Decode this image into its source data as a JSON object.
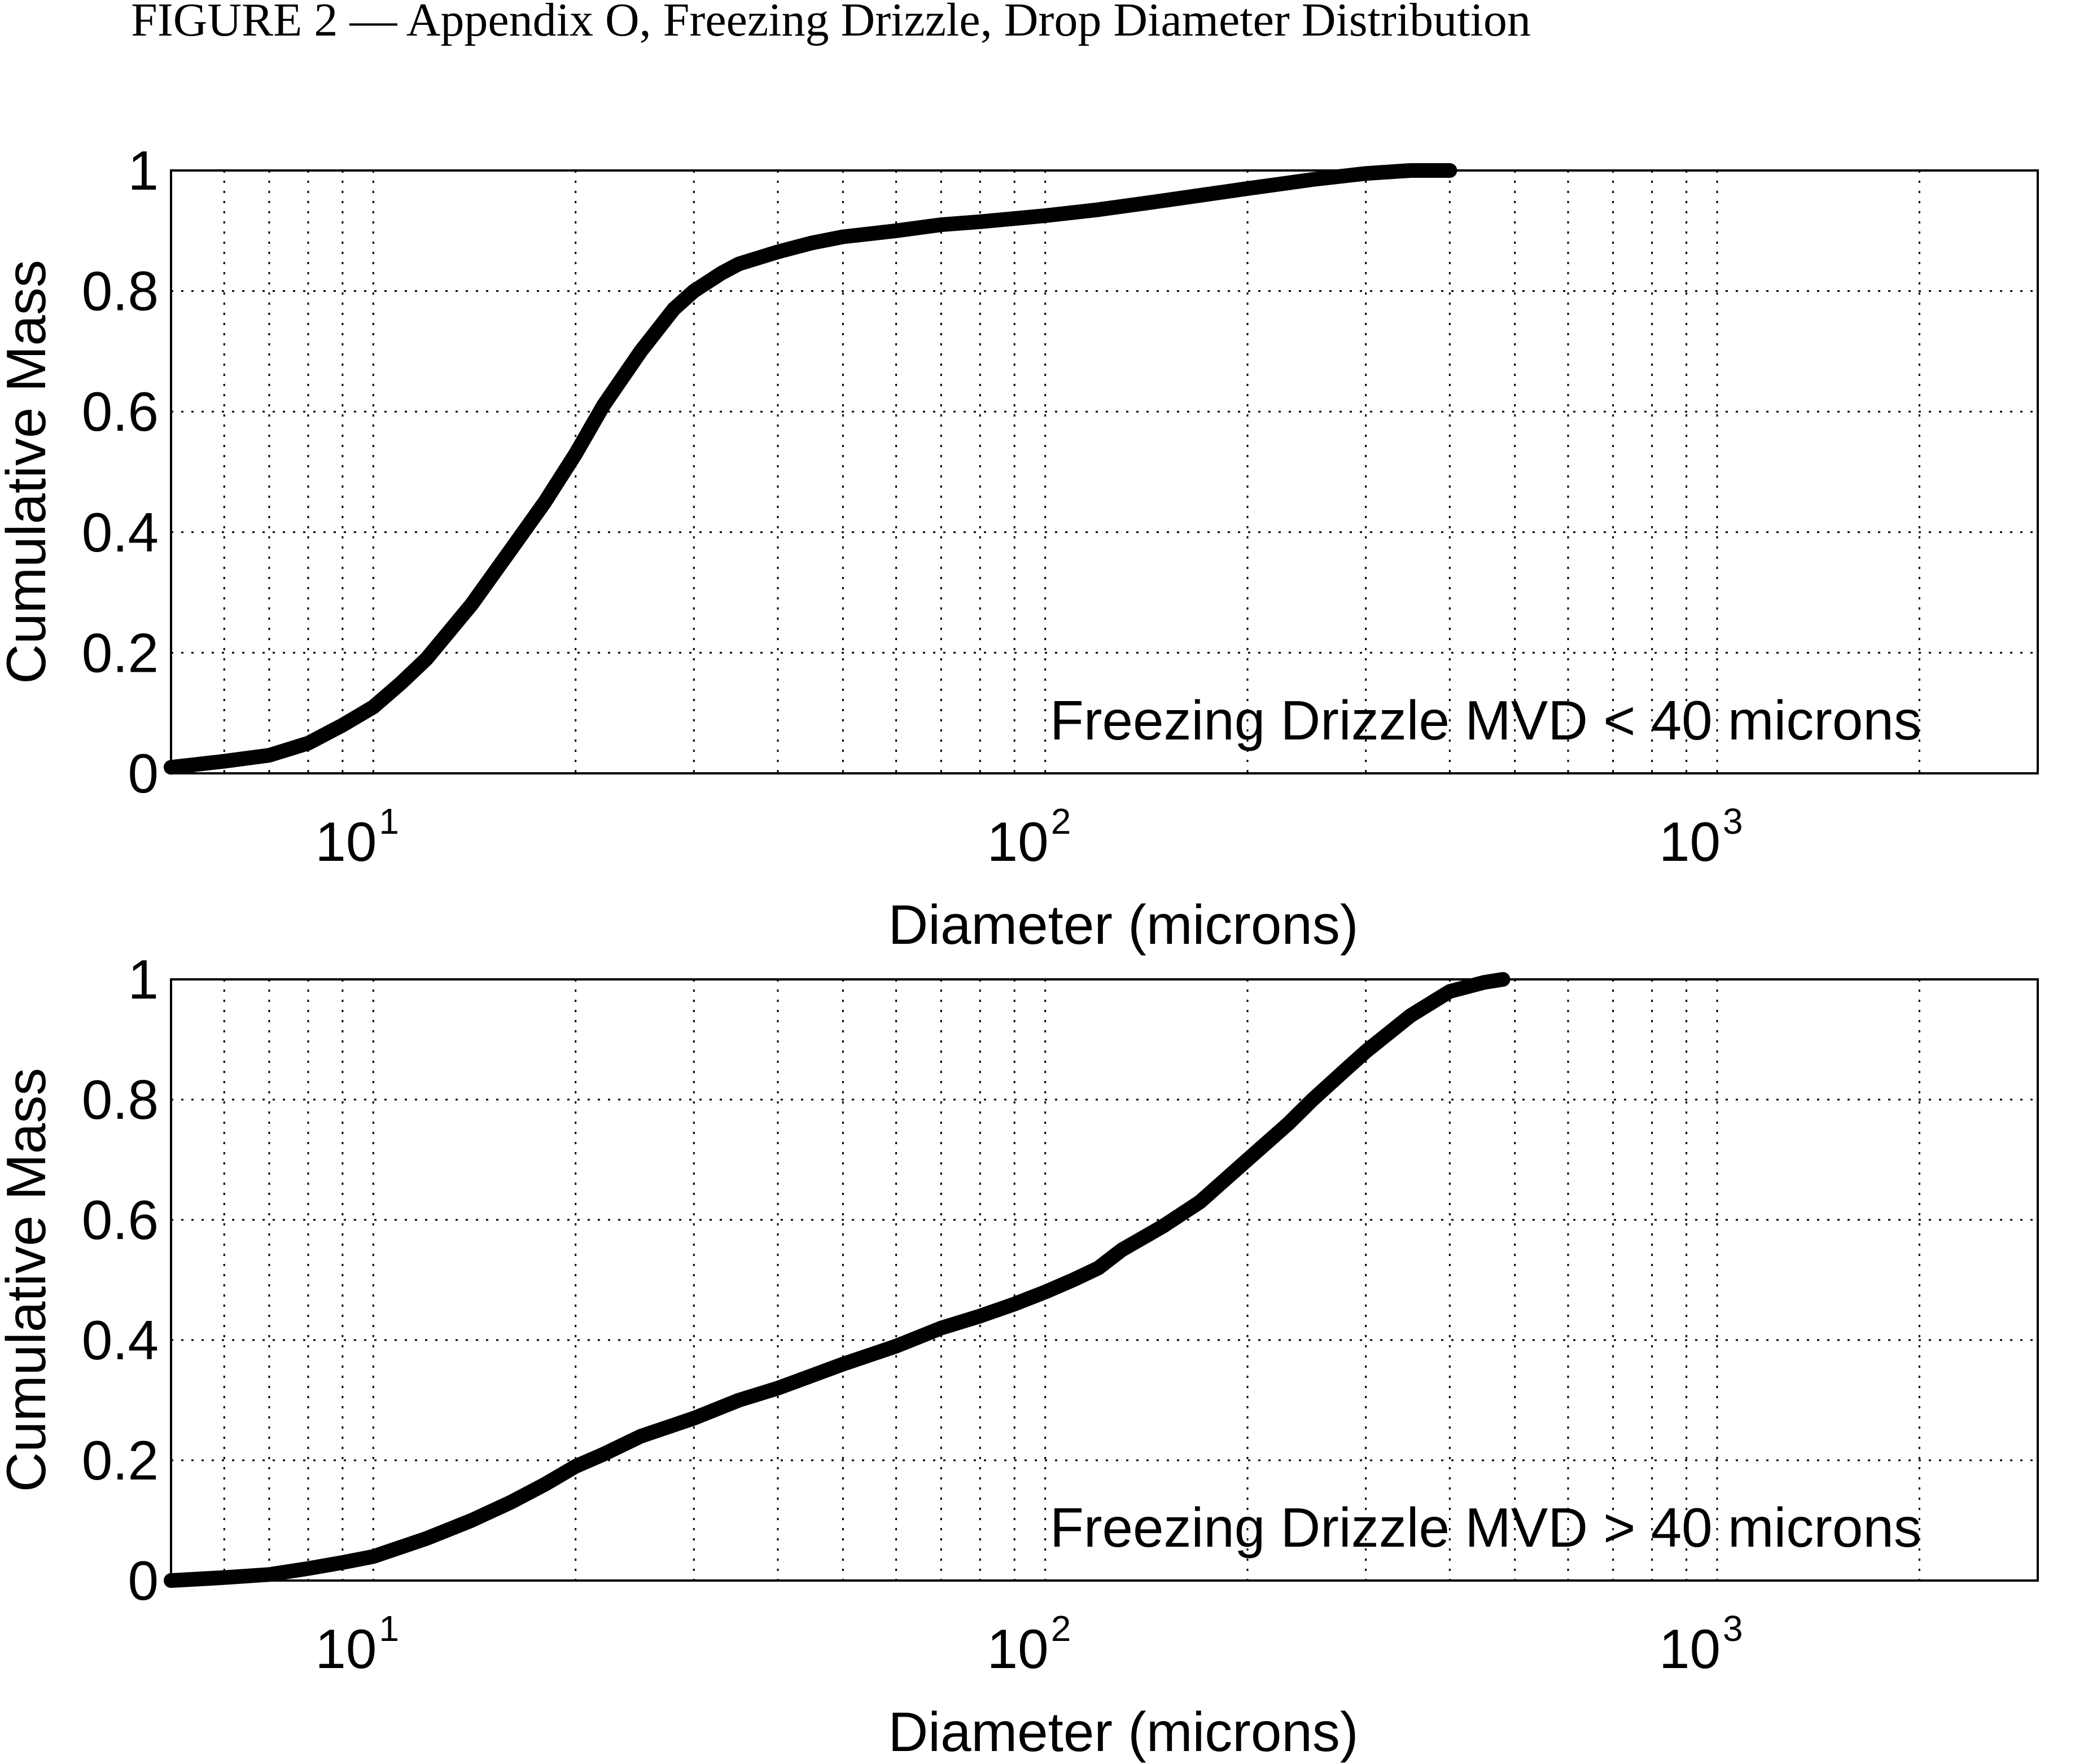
{
  "figure_title": "FIGURE 2 — Appendix O, Freezing Drizzle, Drop Diameter Distribution",
  "chart_data": [
    {
      "type": "line",
      "xlabel": "Diameter (microns)",
      "ylabel": "Cumulative Mass",
      "annotation": "Freezing Drizzle MVD < 40 microns",
      "xscale": "log",
      "xlim": [
        5,
        3000
      ],
      "ylim": [
        0,
        1
      ],
      "yticks": [
        "0",
        "0.2",
        "0.4",
        "0.6",
        "0.8",
        "1"
      ],
      "xticks": [
        {
          "base": "10",
          "exp": "1"
        },
        {
          "base": "10",
          "exp": "2"
        },
        {
          "base": "10",
          "exp": "3"
        }
      ],
      "grid": true,
      "series": [
        {
          "x": [
            5,
            6,
            7,
            8,
            9,
            10,
            11,
            12,
            14,
            16,
            18,
            20,
            22,
            25,
            28,
            30,
            33,
            35,
            40,
            45,
            50,
            60,
            70,
            80,
            100,
            120,
            150,
            200,
            250,
            300,
            350,
            400
          ],
          "y": [
            0.01,
            0.02,
            0.03,
            0.05,
            0.08,
            0.11,
            0.15,
            0.19,
            0.28,
            0.37,
            0.45,
            0.53,
            0.61,
            0.7,
            0.77,
            0.8,
            0.83,
            0.845,
            0.865,
            0.88,
            0.89,
            0.9,
            0.91,
            0.915,
            0.925,
            0.935,
            0.95,
            0.97,
            0.985,
            0.995,
            1.0,
            1.0
          ]
        }
      ]
    },
    {
      "type": "line",
      "xlabel": "Diameter (microns)",
      "ylabel": "Cumulative Mass",
      "annotation": "Freezing Drizzle MVD > 40 microns",
      "xscale": "log",
      "xlim": [
        5,
        3000
      ],
      "ylim": [
        0,
        1
      ],
      "yticks": [
        "0",
        "0.2",
        "0.4",
        "0.6",
        "0.8",
        "1"
      ],
      "xticks": [
        {
          "base": "10",
          "exp": "1"
        },
        {
          "base": "10",
          "exp": "2"
        },
        {
          "base": "10",
          "exp": "3"
        }
      ],
      "grid": true,
      "series": [
        {
          "x": [
            5,
            6,
            7,
            8,
            9,
            10,
            12,
            14,
            16,
            18,
            20,
            22,
            25,
            30,
            35,
            40,
            50,
            60,
            70,
            80,
            90,
            100,
            110,
            120,
            130,
            150,
            170,
            200,
            230,
            250,
            280,
            300,
            350,
            400,
            450,
            480
          ],
          "y": [
            0.0,
            0.005,
            0.01,
            0.02,
            0.03,
            0.04,
            0.07,
            0.1,
            0.13,
            0.16,
            0.19,
            0.21,
            0.24,
            0.27,
            0.3,
            0.32,
            0.36,
            0.39,
            0.42,
            0.44,
            0.46,
            0.48,
            0.5,
            0.52,
            0.55,
            0.59,
            0.63,
            0.7,
            0.76,
            0.8,
            0.85,
            0.88,
            0.94,
            0.98,
            0.995,
            1.0
          ]
        }
      ]
    }
  ]
}
